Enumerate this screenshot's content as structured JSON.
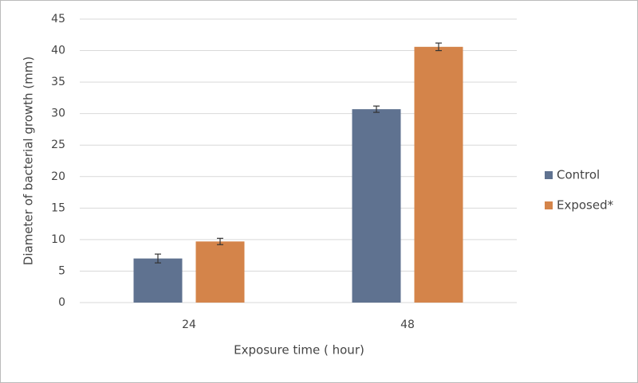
{
  "chart_data": {
    "type": "bar",
    "x_label": "Exposure time ( hour)",
    "y_label": "Diameter of bacterial growth (mm)",
    "categories": [
      "24",
      "48"
    ],
    "series": [
      {
        "name": "Control",
        "color": "#5f7290",
        "values": [
          7,
          30.7
        ],
        "errors": [
          0.7,
          0.5
        ]
      },
      {
        "name": "Exposed*",
        "color": "#d4844a",
        "values": [
          9.7,
          40.6
        ],
        "errors": [
          0.5,
          0.6
        ]
      }
    ],
    "ylim": [
      0,
      45
    ],
    "yticks": [
      0,
      5,
      10,
      15,
      20,
      25,
      30,
      35,
      40,
      45
    ],
    "grid": true,
    "legend": "right"
  }
}
